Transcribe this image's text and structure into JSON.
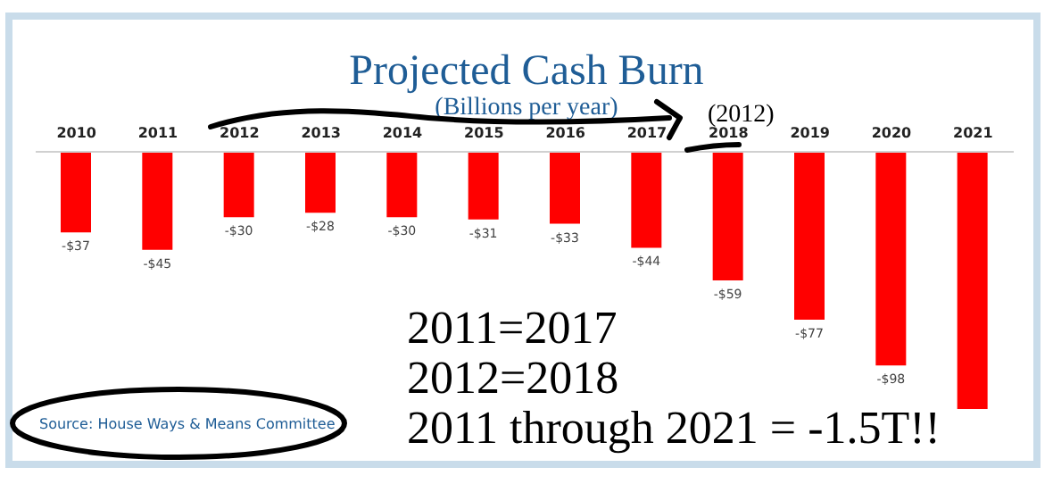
{
  "chart_data": {
    "type": "bar",
    "title": "Projected Cash Burn",
    "subtitle": "(Billions per year)",
    "categories": [
      "2010",
      "2011",
      "2012",
      "2013",
      "2014",
      "2015",
      "2016",
      "2017",
      "2018",
      "2019",
      "2020",
      "2021"
    ],
    "values": [
      -37,
      -45,
      -30,
      -28,
      -30,
      -31,
      -33,
      -44,
      -59,
      -77,
      -98,
      -118
    ],
    "value_labels": [
      "-$37",
      "-$45",
      "-$30",
      "-$28",
      "-$30",
      "-$31",
      "-$33",
      "-$44",
      "-$59",
      "-$77",
      "-$98",
      null
    ],
    "color": "#ff0000",
    "annotations": [
      "(2012)",
      "2011=2017",
      "2012=2018",
      "2011 through 2021 = -1.5T!!",
      "Source: House Ways & Means Committee"
    ],
    "grid": false,
    "legend": false
  }
}
